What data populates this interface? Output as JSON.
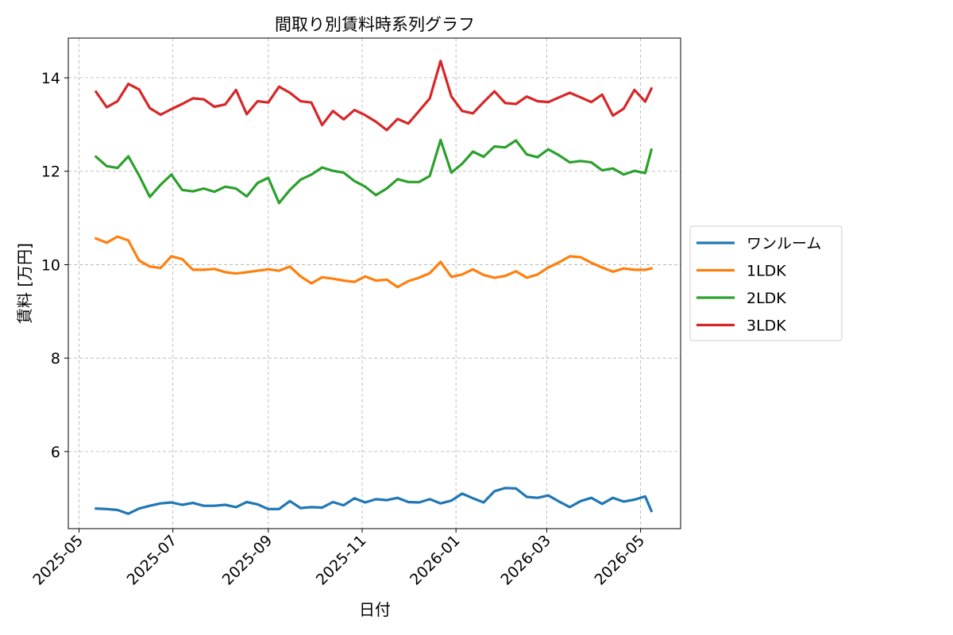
{
  "chart_data": {
    "type": "line",
    "title": "間取り別賃料時系列グラフ",
    "xlabel": "日付",
    "ylabel": "賃料 [万円]",
    "x_ticks": [
      "2025-05",
      "2025-07",
      "2025-09",
      "2025-11",
      "2026-01",
      "2026-03",
      "2026-05"
    ],
    "y_ticks": [
      6,
      8,
      10,
      12,
      14
    ],
    "ylim": [
      4.35,
      14.85
    ],
    "xlim": [
      "2025-04-24",
      "2026-05-27"
    ],
    "grid": true,
    "legend_position": "center-right (outside plot)",
    "x": [
      "2025-05-12",
      "2025-05-19",
      "2025-05-26",
      "2025-06-02",
      "2025-06-09",
      "2025-06-16",
      "2025-06-23",
      "2025-06-30",
      "2025-07-07",
      "2025-07-14",
      "2025-07-21",
      "2025-07-28",
      "2025-08-04",
      "2025-08-11",
      "2025-08-18",
      "2025-08-25",
      "2025-09-01",
      "2025-09-08",
      "2025-09-15",
      "2025-09-22",
      "2025-09-29",
      "2025-10-06",
      "2025-10-13",
      "2025-10-20",
      "2025-10-27",
      "2025-11-03",
      "2025-11-10",
      "2025-11-17",
      "2025-11-24",
      "2025-12-01",
      "2025-12-08",
      "2025-12-15",
      "2025-12-22",
      "2025-12-29",
      "2026-01-05",
      "2026-01-12",
      "2026-01-19",
      "2026-01-26",
      "2026-02-02",
      "2026-02-09",
      "2026-02-16",
      "2026-02-23",
      "2026-03-02",
      "2026-03-09",
      "2026-03-16",
      "2026-03-23",
      "2026-03-30",
      "2026-04-06",
      "2026-04-13",
      "2026-04-20",
      "2026-04-27",
      "2026-05-04",
      "2026-05-08"
    ],
    "series": [
      {
        "name": "ワンルーム",
        "color": "#1f77b4",
        "values": [
          4.78,
          4.77,
          4.75,
          4.67,
          4.78,
          4.84,
          4.89,
          4.91,
          4.86,
          4.9,
          4.84,
          4.84,
          4.86,
          4.81,
          4.92,
          4.87,
          4.77,
          4.77,
          4.94,
          4.79,
          4.81,
          4.8,
          4.92,
          4.85,
          5.0,
          4.91,
          4.98,
          4.96,
          5.01,
          4.92,
          4.91,
          4.98,
          4.89,
          4.95,
          5.1,
          5.0,
          4.91,
          5.15,
          5.22,
          5.21,
          5.03,
          5.01,
          5.06,
          4.93,
          4.81,
          4.94,
          5.01,
          4.88,
          5.01,
          4.93,
          4.97,
          5.04,
          4.73
        ]
      },
      {
        "name": "1LDK",
        "color": "#ff7f0e",
        "values": [
          10.56,
          10.47,
          10.6,
          10.52,
          10.09,
          9.96,
          9.93,
          10.18,
          10.12,
          9.89,
          9.89,
          9.91,
          9.84,
          9.81,
          9.84,
          9.87,
          9.9,
          9.87,
          9.96,
          9.75,
          9.6,
          9.73,
          9.7,
          9.66,
          9.63,
          9.75,
          9.66,
          9.68,
          9.52,
          9.65,
          9.72,
          9.82,
          10.06,
          9.74,
          9.79,
          9.9,
          9.78,
          9.72,
          9.76,
          9.86,
          9.72,
          9.79,
          9.94,
          10.05,
          10.18,
          10.16,
          10.04,
          9.94,
          9.85,
          9.92,
          9.89,
          9.89,
          9.92
        ]
      },
      {
        "name": "2LDK",
        "color": "#2ca02c",
        "values": [
          12.31,
          12.11,
          12.07,
          12.32,
          11.91,
          11.45,
          11.71,
          11.93,
          11.6,
          11.57,
          11.63,
          11.56,
          11.67,
          11.63,
          11.46,
          11.75,
          11.86,
          11.32,
          11.6,
          11.82,
          11.93,
          12.08,
          12.01,
          11.97,
          11.79,
          11.67,
          11.49,
          11.63,
          11.83,
          11.77,
          11.77,
          11.9,
          12.67,
          11.97,
          12.16,
          12.42,
          12.31,
          12.53,
          12.51,
          12.66,
          12.36,
          12.3,
          12.47,
          12.34,
          12.19,
          12.22,
          12.19,
          12.02,
          12.06,
          11.93,
          12.01,
          11.96,
          12.46
        ]
      },
      {
        "name": "3LDK",
        "color": "#d62728",
        "values": [
          13.7,
          13.37,
          13.5,
          13.87,
          13.75,
          13.35,
          13.21,
          13.33,
          13.44,
          13.56,
          13.54,
          13.38,
          13.43,
          13.74,
          13.22,
          13.5,
          13.47,
          13.81,
          13.68,
          13.5,
          13.47,
          12.99,
          13.29,
          13.11,
          13.31,
          13.2,
          13.06,
          12.88,
          13.12,
          13.02,
          13.29,
          13.56,
          14.36,
          13.6,
          13.29,
          13.24,
          13.48,
          13.71,
          13.46,
          13.44,
          13.6,
          13.5,
          13.48,
          13.58,
          13.68,
          13.58,
          13.48,
          13.64,
          13.19,
          13.34,
          13.74,
          13.49,
          13.77
        ]
      }
    ]
  }
}
